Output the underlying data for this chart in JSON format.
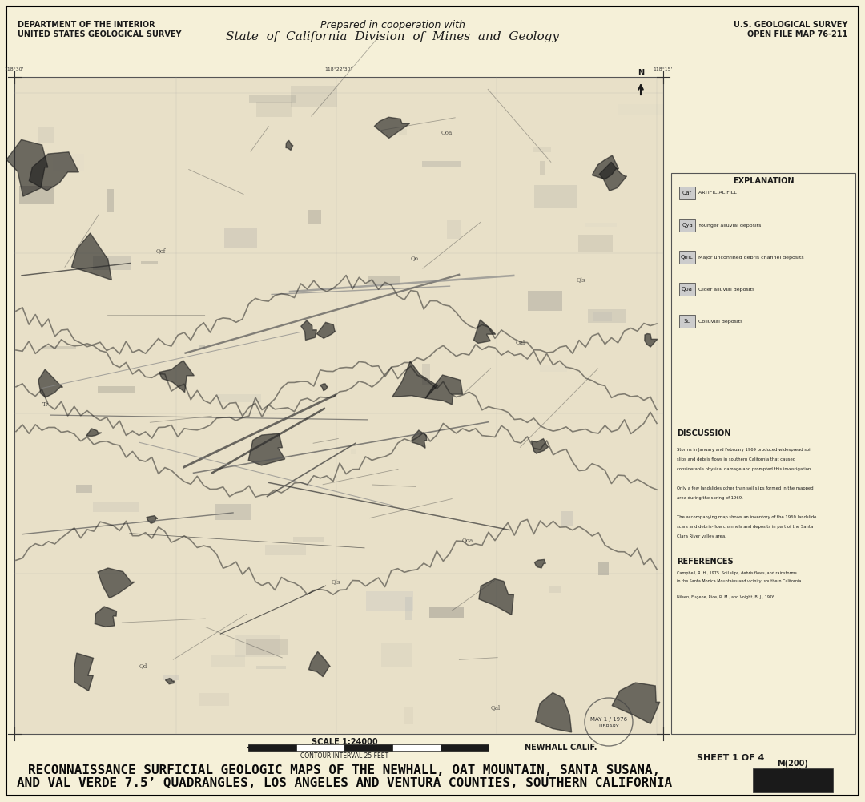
{
  "background_color": "#f5f0d8",
  "map_bg_color": "#ffffff",
  "border_color": "#000000",
  "title_top_center": "Prepared in cooperation with",
  "title_top_center2": "State  of  California  Division  of  Mines  and  Geology",
  "title_top_left_line1": "DEPARTMENT OF THE INTERIOR",
  "title_top_left_line2": "UNITED STATES GEOLOGICAL SURVEY",
  "title_top_right_line1": "U.S. GEOLOGICAL SURVEY",
  "title_top_right_line2": "OPEN FILE MAP 76-211",
  "title_bottom_line1": "RECONNAISSANCE SURFICIAL GEOLOGIC MAPS OF THE NEWHALL, OAT MOUNTAIN, SANTA SUSANA,",
  "title_bottom_line2": "AND VAL VERDE 7.5’ QUADRANGLES, LOS ANGELES AND VENTURA COUNTIES, SOUTHERN CALIFORNIA",
  "sheet_info": "SHEET 1 OF 4",
  "location_label": "NEWHALL CALIF.",
  "scale_label": "SCALE 1:24000",
  "contour_label": "CONTOUR INTERVAL 25 FEET",
  "map_color": "#d4c9a0",
  "stamp_text": "MAY 1 / 1976",
  "figsize": [
    10.8,
    10.01
  ],
  "dpi": 100
}
